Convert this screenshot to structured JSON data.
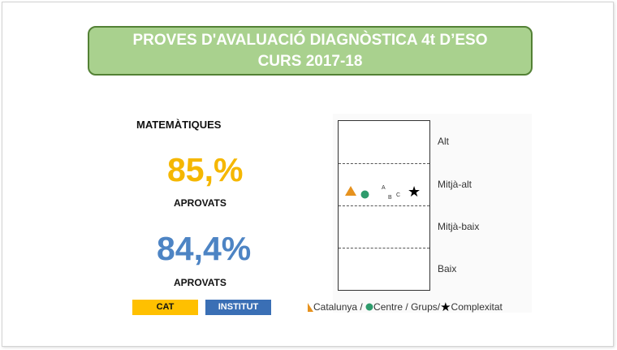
{
  "banner": {
    "line1": "PROVES D'AVALUACIÓ DIAGNÒSTICA 4t D’ESO",
    "line2": "CURS 2017-18"
  },
  "subject": "MATEMÀTIQUES",
  "cat_result": {
    "percent": "85,%",
    "label": "APROVATS",
    "color": "#f5b700"
  },
  "institut_result": {
    "percent": "84,4%",
    "label": "APROVATS",
    "color": "#4d84c4"
  },
  "legend": {
    "cat": "CAT",
    "institut": "INSTITUT"
  },
  "chart": {
    "levels": [
      "Alt",
      "Mitjà-alt",
      "Mitjà-baix",
      "Baix"
    ],
    "group_labels": [
      "A",
      "B",
      "C"
    ],
    "legend_catalunya": "Catalunya /",
    "legend_centre": " Centre / Grups/",
    "legend_complexitat": "Complexitat",
    "colors": {
      "catalunya": "#e6921e",
      "centre": "#2e9b6c"
    }
  }
}
